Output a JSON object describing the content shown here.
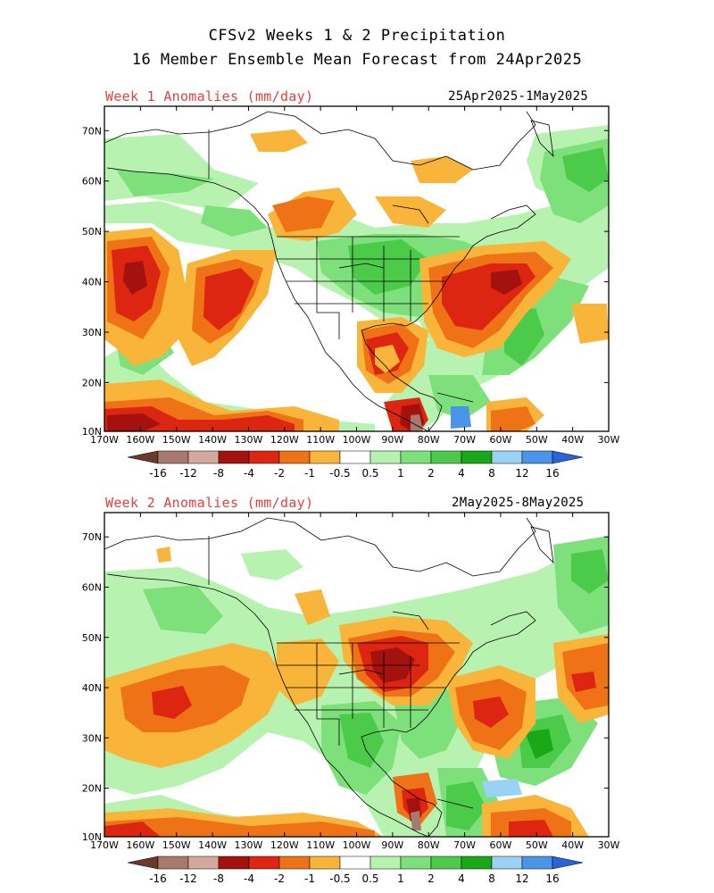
{
  "header": {
    "title_line1": "CFSv2 Weeks 1 & 2 Precipitation",
    "title_line2": "16 Member Ensemble Mean Forecast from 24Apr2025"
  },
  "panels": [
    {
      "id": "week1",
      "title": "Week 1 Anomalies (mm/day)",
      "date_range": "25Apr2025-1May2025"
    },
    {
      "id": "week2",
      "title": "Week 2 Anomalies (mm/day)",
      "date_range": "2May2025-8May2025"
    }
  ],
  "axes": {
    "lat_labels": [
      "70N",
      "60N",
      "50N",
      "40N",
      "30N",
      "20N",
      "10N"
    ],
    "lon_labels": [
      "170W",
      "160W",
      "150W",
      "140W",
      "130W",
      "120W",
      "110W",
      "100W",
      "90W",
      "80W",
      "70W",
      "60W",
      "50W",
      "40W",
      "30W"
    ]
  },
  "colorbar": {
    "labels": [
      "-16",
      "-12",
      "-8",
      "-4",
      "-2",
      "-1",
      "-0.5",
      "0.5",
      "1",
      "2",
      "4",
      "8",
      "12",
      "16"
    ],
    "colors": {
      "lt_m16": "#6b3a2e",
      "m16_m12": "#a87a6c",
      "m12_m8": "#d4a99b",
      "m8_m4": "#a3120e",
      "m4_m2": "#dd2612",
      "m2_m1": "#f07217",
      "m1_m05": "#f9b43a",
      "neutral": "#ffffff",
      "p05_p1": "#b8f2b0",
      "p1_p2": "#7ee07a",
      "p2_p4": "#4ccb4a",
      "p4_p8": "#18a818",
      "p8_p12": "#9ad2f4",
      "p12_p16": "#4a95e8",
      "gt_p16": "#2a62d8"
    }
  }
}
